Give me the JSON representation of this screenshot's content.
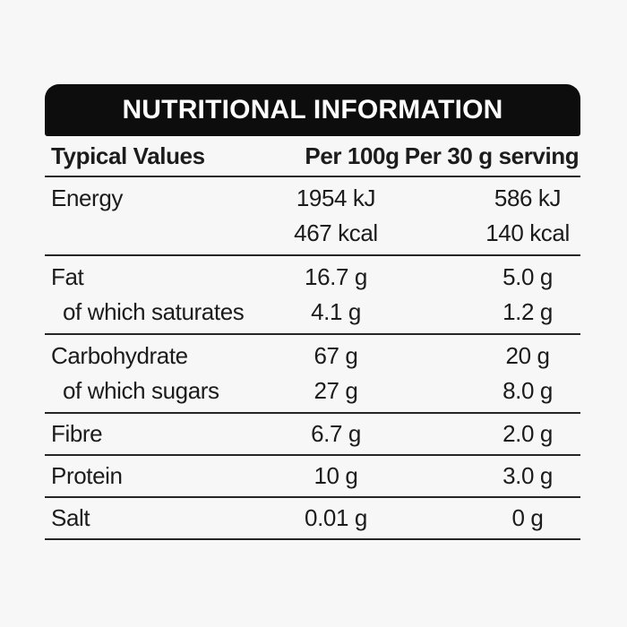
{
  "colors": {
    "page_bg": "#f7f7f7",
    "bar_bg": "#0d0d0d",
    "bar_text": "#ffffff",
    "text": "#1c1c1c",
    "rule": "#262626"
  },
  "label": {
    "title": "NUTRITIONAL INFORMATION",
    "columns": [
      "Typical Values",
      "Per 100g",
      "Per 30 g serving"
    ],
    "rows": [
      {
        "lines": [
          {
            "name": "Energy",
            "per100": "1954 kJ",
            "per30": "586 kJ"
          },
          {
            "name": "",
            "per100": "467 kcal",
            "per30": "140 kcal"
          }
        ]
      },
      {
        "lines": [
          {
            "name": "Fat",
            "per100": "16.7 g",
            "per30": "5.0 g"
          },
          {
            "name": "of which saturates",
            "per100": "4.1 g",
            "per30": "1.2 g"
          }
        ]
      },
      {
        "lines": [
          {
            "name": "Carbohydrate",
            "per100": "67 g",
            "per30": "20 g"
          },
          {
            "name": "of which sugars",
            "per100": "27 g",
            "per30": "8.0 g"
          }
        ]
      },
      {
        "lines": [
          {
            "name": "Fibre",
            "per100": "6.7 g",
            "per30": "2.0 g"
          }
        ]
      },
      {
        "lines": [
          {
            "name": "Protein",
            "per100": "10 g",
            "per30": "3.0 g"
          }
        ]
      },
      {
        "lines": [
          {
            "name": "Salt",
            "per100": "0.01 g",
            "per30": "0 g"
          }
        ]
      }
    ]
  }
}
